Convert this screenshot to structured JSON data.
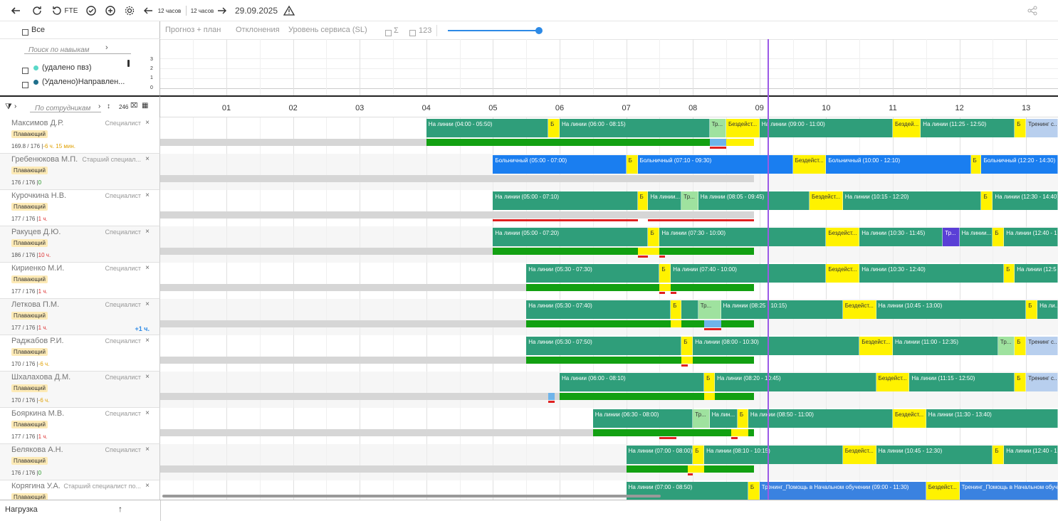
{
  "toolbar": {
    "fte": "FTE",
    "hours_left": "12 часов",
    "hours_right": "12 часов",
    "date": "29.09.2025"
  },
  "tabs": {
    "forecast": "Прогноз + план",
    "deviations": "Отклонения",
    "sl": "Уровень сервиса (SL)",
    "sum": "Σ",
    "num": "123"
  },
  "filter": {
    "all_label": "Все",
    "skills_placeholder": "Поиск по навыкам",
    "skills": [
      {
        "label": "(удалено пвз)",
        "color": "#5ad8c8"
      },
      {
        "label": "(Удалено)Направлен...",
        "color": "#1f6f8b"
      }
    ],
    "employees_placeholder": "По сотрудникам",
    "employee_count": "246"
  },
  "mini_axis": [
    "3",
    "2",
    "1",
    "0"
  ],
  "hours": [
    "01",
    "02",
    "03",
    "04",
    "05",
    "06",
    "07",
    "08",
    "09",
    "10",
    "11",
    "12",
    "13"
  ],
  "colors": {
    "green": "#2f9e7a",
    "yellow": "#fff200",
    "blue": "#1a7ef0",
    "lightgreen": "#9fe29f",
    "purple": "#5a3fd6",
    "lightblue": "#b8cfee",
    "trainblue": "#3a82e0",
    "now": "#9b59e6"
  },
  "employees": [
    {
      "name": "Максимов Д.Р.",
      "role": "Специалист",
      "badge": "Плавающий",
      "stat": "169.8 / 176 |",
      "delta": "-6 ч. 15 мин.",
      "delta_type": "warn",
      "extra": ""
    },
    {
      "name": "Гребенюкова М.П.",
      "role": "Старший специал...",
      "badge": "Плавающий",
      "stat": "176 / 176 |",
      "delta": "0",
      "delta_type": "ok",
      "extra": ""
    },
    {
      "name": "Курочкина Н.В.",
      "role": "Специалист",
      "badge": "Плавающий",
      "stat": "177 / 176 |",
      "delta": "1 ч.",
      "delta_type": "neg",
      "extra": ""
    },
    {
      "name": "Ракуцев Д.Ю.",
      "role": "Специалист",
      "badge": "Плавающий",
      "stat": "186 / 176 |",
      "delta": "10 ч.",
      "delta_type": "neg",
      "extra": ""
    },
    {
      "name": "Кириенко М.И.",
      "role": "Специалист",
      "badge": "Плавающий",
      "stat": "177 / 176 |",
      "delta": "1 ч.",
      "delta_type": "neg",
      "extra": ""
    },
    {
      "name": "Леткова П.М.",
      "role": "Специалист",
      "badge": "Плавающий",
      "stat": "177 / 176 |",
      "delta": "1 ч.",
      "delta_type": "neg",
      "extra": "+1 ч."
    },
    {
      "name": "Раджабов Р.И.",
      "role": "Специалист",
      "badge": "Плавающий",
      "stat": "170 / 176 |",
      "delta": "-6 ч.",
      "delta_type": "warn",
      "extra": ""
    },
    {
      "name": "Шхалахова Д.М.",
      "role": "Специалист",
      "badge": "Плавающий",
      "stat": "170 / 176 |",
      "delta": "-6 ч.",
      "delta_type": "warn",
      "extra": ""
    },
    {
      "name": "Бояркина М.В.",
      "role": "Специалист",
      "badge": "Плавающий",
      "stat": "177 / 176 |",
      "delta": "1 ч.",
      "delta_type": "neg",
      "extra": ""
    },
    {
      "name": "Белякова А.Н.",
      "role": "Специалист",
      "badge": "Плавающий",
      "stat": "176 / 176 |",
      "delta": "0",
      "delta_type": "ok",
      "extra": ""
    },
    {
      "name": "Корягина У.А.",
      "role": "Старший специалист по...",
      "badge": "Плавающий",
      "stat": "",
      "delta": "",
      "delta_type": "ok",
      "extra": ""
    }
  ],
  "schedule": [
    [
      {
        "s": 4.0,
        "e": 5.83,
        "c": "green",
        "t": "На линии (04:00 - 05:50)"
      },
      {
        "s": 5.83,
        "e": 6.0,
        "c": "yellow",
        "t": "Б"
      },
      {
        "s": 6.0,
        "e": 8.25,
        "c": "green",
        "t": "На линии (06:00 - 08:15)"
      },
      {
        "s": 8.25,
        "e": 8.5,
        "c": "lightgreen",
        "t": "Тр..."
      },
      {
        "s": 8.5,
        "e": 9.0,
        "c": "yellow",
        "t": "Бездейст..."
      },
      {
        "s": 9.0,
        "e": 11.0,
        "c": "green",
        "t": "На линии (09:00 - 11:00)"
      },
      {
        "s": 11.0,
        "e": 11.42,
        "c": "yellow",
        "t": "Бездей..."
      },
      {
        "s": 11.42,
        "e": 12.83,
        "c": "green",
        "t": "На линии (11:25 - 12:50)"
      },
      {
        "s": 12.83,
        "e": 13.0,
        "c": "yellow",
        "t": "Б"
      },
      {
        "s": 13.0,
        "e": 13.5,
        "c": "lightblue",
        "t": "Тренинг с..."
      }
    ],
    [
      {
        "s": 5.0,
        "e": 7.0,
        "c": "blue",
        "t": "Больничный (05:00 - 07:00)"
      },
      {
        "s": 7.0,
        "e": 7.17,
        "c": "yellow",
        "t": "Б"
      },
      {
        "s": 7.17,
        "e": 9.5,
        "c": "blue",
        "t": "Больничный (07:10 - 09:30)"
      },
      {
        "s": 9.5,
        "e": 10.0,
        "c": "yellow",
        "t": "Бездейст..."
      },
      {
        "s": 10.0,
        "e": 12.17,
        "c": "blue",
        "t": "Больничный (10:00 - 12:10)"
      },
      {
        "s": 12.17,
        "e": 12.33,
        "c": "yellow",
        "t": "Б"
      },
      {
        "s": 12.33,
        "e": 13.5,
        "c": "blue",
        "t": "Больничный (12:20 - 14:30)"
      }
    ],
    [
      {
        "s": 5.0,
        "e": 7.17,
        "c": "green",
        "t": "На линии (05:00 - 07:10)"
      },
      {
        "s": 7.17,
        "e": 7.33,
        "c": "yellow",
        "t": "Б"
      },
      {
        "s": 7.33,
        "e": 7.83,
        "c": "green",
        "t": "На линии..."
      },
      {
        "s": 7.83,
        "e": 8.08,
        "c": "lightgreen",
        "t": "Тр..."
      },
      {
        "s": 8.08,
        "e": 9.75,
        "c": "green",
        "t": "На линии (08:05 - 09:45)"
      },
      {
        "s": 9.75,
        "e": 10.25,
        "c": "yellow",
        "t": "Бездейст..."
      },
      {
        "s": 10.25,
        "e": 12.33,
        "c": "green",
        "t": "На линии (10:15 - 12:20)"
      },
      {
        "s": 12.33,
        "e": 12.5,
        "c": "yellow",
        "t": "Б"
      },
      {
        "s": 12.5,
        "e": 13.5,
        "c": "green",
        "t": "На линии (12:30 - 14:40)"
      }
    ],
    [
      {
        "s": 5.0,
        "e": 7.33,
        "c": "green",
        "t": "На линии (05:00 - 07:20)"
      },
      {
        "s": 7.33,
        "e": 7.5,
        "c": "yellow",
        "t": "Б"
      },
      {
        "s": 7.5,
        "e": 10.0,
        "c": "green",
        "t": "На линии (07:30 - 10:00)"
      },
      {
        "s": 10.0,
        "e": 10.5,
        "c": "yellow",
        "t": "Бездейст..."
      },
      {
        "s": 10.5,
        "e": 11.75,
        "c": "green",
        "t": "На линии (10:30 - 11:45)"
      },
      {
        "s": 11.75,
        "e": 12.0,
        "c": "purple",
        "t": "Тр..."
      },
      {
        "s": 12.0,
        "e": 12.5,
        "c": "green",
        "t": "На линии..."
      },
      {
        "s": 12.5,
        "e": 12.67,
        "c": "yellow",
        "t": "Б"
      },
      {
        "s": 12.67,
        "e": 13.5,
        "c": "green",
        "t": "На линии (12:40 - 1"
      }
    ],
    [
      {
        "s": 5.5,
        "e": 7.5,
        "c": "green",
        "t": "На линии (05:30 - 07:30)"
      },
      {
        "s": 7.5,
        "e": 7.67,
        "c": "yellow",
        "t": "Б"
      },
      {
        "s": 7.67,
        "e": 10.0,
        "c": "green",
        "t": "На линии (07:40 - 10:00)"
      },
      {
        "s": 10.0,
        "e": 10.5,
        "c": "yellow",
        "t": "Бездейст..."
      },
      {
        "s": 10.5,
        "e": 12.67,
        "c": "green",
        "t": "На линии (10:30 - 12:40)"
      },
      {
        "s": 12.67,
        "e": 12.83,
        "c": "yellow",
        "t": "Б"
      },
      {
        "s": 12.83,
        "e": 13.5,
        "c": "green",
        "t": "На линии (12:5"
      }
    ],
    [
      {
        "s": 5.5,
        "e": 7.67,
        "c": "green",
        "t": "На линии (05:30 - 07:40)"
      },
      {
        "s": 7.67,
        "e": 7.83,
        "c": "yellow",
        "t": "Б"
      },
      {
        "s": 7.83,
        "e": 8.08,
        "c": "green",
        "t": ""
      },
      {
        "s": 8.08,
        "e": 8.42,
        "c": "lightgreen",
        "t": "Тр..."
      },
      {
        "s": 8.42,
        "e": 10.25,
        "c": "green",
        "t": "На линии (08:25 - 10:15)"
      },
      {
        "s": 10.25,
        "e": 10.75,
        "c": "yellow",
        "t": "Бездейст..."
      },
      {
        "s": 10.75,
        "e": 13.0,
        "c": "green",
        "t": "На линии (10:45 - 13:00)"
      },
      {
        "s": 13.0,
        "e": 13.17,
        "c": "yellow",
        "t": "Б"
      },
      {
        "s": 13.17,
        "e": 13.5,
        "c": "green",
        "t": "На ли..."
      }
    ],
    [
      {
        "s": 5.5,
        "e": 7.83,
        "c": "green",
        "t": "На линии (05:30 - 07:50)"
      },
      {
        "s": 7.83,
        "e": 8.0,
        "c": "yellow",
        "t": "Б"
      },
      {
        "s": 8.0,
        "e": 10.5,
        "c": "green",
        "t": "На линии (08:00 - 10:30)"
      },
      {
        "s": 10.5,
        "e": 11.0,
        "c": "yellow",
        "t": "Бездейст..."
      },
      {
        "s": 11.0,
        "e": 12.58,
        "c": "green",
        "t": "На линии (11:00 - 12:35)"
      },
      {
        "s": 12.58,
        "e": 12.83,
        "c": "lightgreen",
        "t": "Тр..."
      },
      {
        "s": 12.83,
        "e": 13.0,
        "c": "yellow",
        "t": "Б"
      },
      {
        "s": 13.0,
        "e": 13.5,
        "c": "lightblue",
        "t": "Тренинг с..."
      }
    ],
    [
      {
        "s": 6.0,
        "e": 8.17,
        "c": "green",
        "t": "На линии (06:00 - 08:10)"
      },
      {
        "s": 8.17,
        "e": 8.33,
        "c": "yellow",
        "t": "Б"
      },
      {
        "s": 8.33,
        "e": 10.75,
        "c": "green",
        "t": "На линии (08:20 - 10:45)"
      },
      {
        "s": 10.75,
        "e": 11.25,
        "c": "yellow",
        "t": "Бездейст..."
      },
      {
        "s": 11.25,
        "e": 12.83,
        "c": "green",
        "t": "На линии (11:15 - 12:50)"
      },
      {
        "s": 12.83,
        "e": 13.0,
        "c": "yellow",
        "t": "Б"
      },
      {
        "s": 13.0,
        "e": 13.5,
        "c": "lightblue",
        "t": "Тренинг с..."
      }
    ],
    [
      {
        "s": 6.5,
        "e": 8.0,
        "c": "green",
        "t": "На линии (06:30 - 08:00)"
      },
      {
        "s": 8.0,
        "e": 8.25,
        "c": "lightgreen",
        "t": "Тр..."
      },
      {
        "s": 8.25,
        "e": 8.67,
        "c": "green",
        "t": "На лин..."
      },
      {
        "s": 8.67,
        "e": 8.83,
        "c": "yellow",
        "t": "Б"
      },
      {
        "s": 8.83,
        "e": 11.0,
        "c": "green",
        "t": "На линии (08:50 - 11:00)"
      },
      {
        "s": 11.0,
        "e": 11.5,
        "c": "yellow",
        "t": "Бездейст..."
      },
      {
        "s": 11.5,
        "e": 13.5,
        "c": "green",
        "t": "На линии (11:30 - 13:40)"
      }
    ],
    [
      {
        "s": 7.0,
        "e": 8.0,
        "c": "green",
        "t": "На линии (07:00 - 08:00)"
      },
      {
        "s": 8.0,
        "e": 8.17,
        "c": "yellow",
        "t": "Б"
      },
      {
        "s": 8.17,
        "e": 10.25,
        "c": "green",
        "t": "На линии (08:10 - 10:15)"
      },
      {
        "s": 10.25,
        "e": 10.75,
        "c": "yellow",
        "t": "Бездейст..."
      },
      {
        "s": 10.75,
        "e": 12.5,
        "c": "green",
        "t": "На линии (10:45 - 12:30)"
      },
      {
        "s": 12.5,
        "e": 12.67,
        "c": "yellow",
        "t": "Б"
      },
      {
        "s": 12.67,
        "e": 13.5,
        "c": "green",
        "t": "На линии (12:40 - 1"
      }
    ],
    [
      {
        "s": 7.0,
        "e": 8.83,
        "c": "green",
        "t": "На линии (07:00 - 08:50)"
      },
      {
        "s": 8.83,
        "e": 9.0,
        "c": "yellow",
        "t": "Б"
      },
      {
        "s": 9.0,
        "e": 11.5,
        "c": "trainblue",
        "t": "Тренинг_Помощь в Начальном обучении (09:00 - 11:30)"
      },
      {
        "s": 11.5,
        "e": 12.0,
        "c": "yellow",
        "t": "Бездейст..."
      },
      {
        "s": 12.0,
        "e": 13.5,
        "c": "trainblue",
        "t": "Тренинг_Помощь в Начальном обуче"
      }
    ]
  ],
  "coverage": [
    {
      "gray": [
        0,
        8.83
      ],
      "green": [
        4.0,
        8.25
      ],
      "blue": [
        8.25,
        8.5
      ],
      "yellow": [
        8.5,
        8.92
      ],
      "red": [
        [
          8.25,
          8.5
        ]
      ]
    },
    {
      "gray": [
        0,
        8.92
      ],
      "green": null,
      "blue": null,
      "yellow": null,
      "red": []
    },
    {
      "gray": [
        0,
        8.92
      ],
      "green": null,
      "blue": null,
      "yellow": null,
      "red": [
        [
          5.0,
          7.17
        ],
        [
          7.33,
          8.92
        ]
      ]
    },
    {
      "gray": [
        0,
        8.92
      ],
      "green": [
        5.0,
        8.92
      ],
      "blue": null,
      "yellow": [
        7.17,
        7.5
      ],
      "red": [
        [
          7.17,
          7.33
        ],
        [
          7.5,
          7.58
        ]
      ]
    },
    {
      "gray": [
        0,
        8.92
      ],
      "green": [
        5.5,
        8.92
      ],
      "blue": null,
      "yellow": [
        7.5,
        7.67
      ],
      "red": [
        [
          7.5,
          7.58
        ],
        [
          7.67,
          7.75
        ]
      ]
    },
    {
      "gray": [
        0,
        8.92
      ],
      "green": [
        5.5,
        8.92
      ],
      "blue": [
        8.17,
        8.42
      ],
      "yellow": [
        7.67,
        7.83
      ],
      "red": [
        [
          8.17,
          8.42
        ]
      ]
    },
    {
      "gray": [
        0,
        8.92
      ],
      "green": [
        5.5,
        8.92
      ],
      "blue": null,
      "yellow": [
        7.83,
        8.0
      ],
      "red": [
        [
          7.83,
          7.92
        ]
      ]
    },
    {
      "gray": [
        0,
        8.92
      ],
      "green": [
        6.0,
        8.92
      ],
      "blue": [
        5.83,
        5.92
      ],
      "yellow": [
        8.17,
        8.33
      ],
      "red": [
        [
          5.83,
          5.92
        ]
      ]
    },
    {
      "gray": [
        0,
        8.92
      ],
      "green": [
        6.5,
        8.92
      ],
      "blue": null,
      "yellow": [
        8.58,
        8.83
      ],
      "red": [
        [
          7.5,
          7.75
        ],
        [
          8.58,
          8.67
        ]
      ]
    },
    {
      "gray": [
        0,
        8.92
      ],
      "green": [
        7.0,
        8.92
      ],
      "blue": null,
      "yellow": [
        7.92,
        8.17
      ],
      "red": [
        [
          7.92,
          8.0
        ]
      ]
    },
    {
      "gray": [
        0,
        8.92
      ],
      "green": null,
      "blue": null,
      "yellow": null,
      "red": []
    }
  ],
  "bottom": {
    "label": "Нагрузка"
  }
}
